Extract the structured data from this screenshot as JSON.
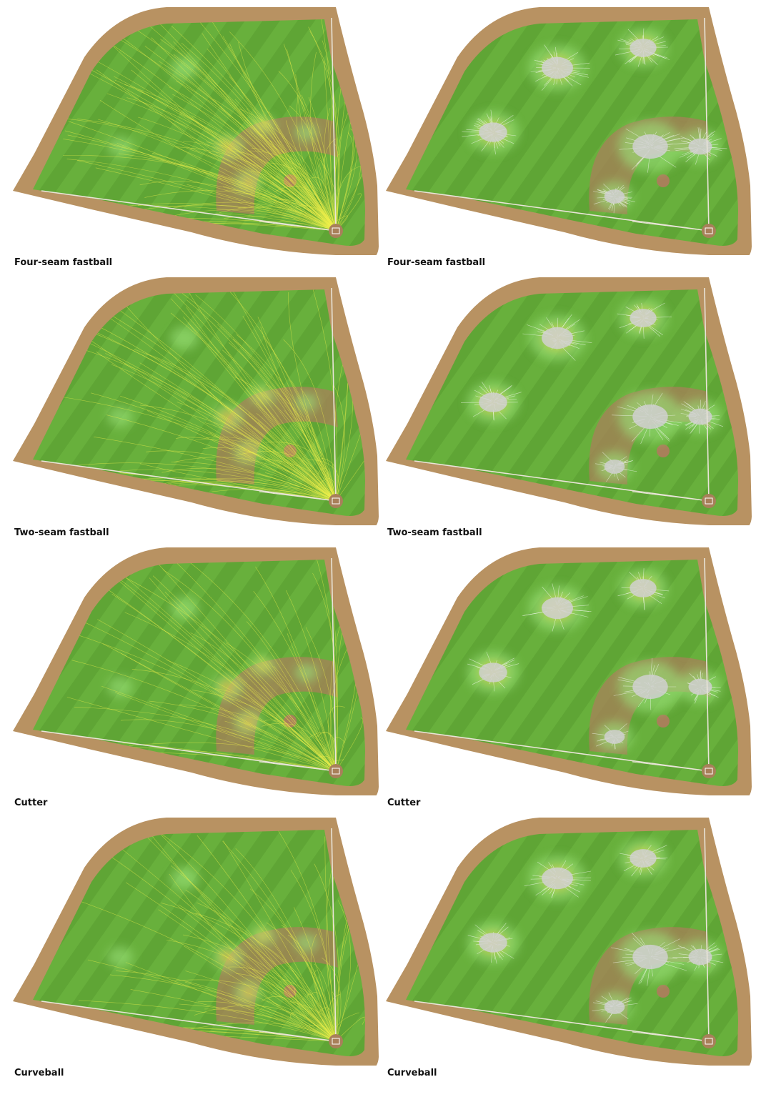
{
  "colors": {
    "grass": "#5fa535",
    "grass_stripe": "#68b03c",
    "dirt": "#b89262",
    "infield_dirt": "#a8805a",
    "line": "#e9e4d8",
    "trajectory_left": "#f0f04a",
    "trajectory_right": "#ffffff",
    "heat_low": "#9be37a",
    "heat_mid": "#e8d84a",
    "heat_high": "#f06a3a"
  },
  "rows": [
    {
      "left": {
        "label": "Four-seam fastball",
        "view": "trajectories",
        "line_density": 1.0
      },
      "right": {
        "label": "Four-seam fastball",
        "view": "landing-clusters",
        "line_density": 1.0
      }
    },
    {
      "left": {
        "label": "Two-seam fastball",
        "view": "trajectories",
        "line_density": 0.7
      },
      "right": {
        "label": "Two-seam fastball",
        "view": "landing-clusters",
        "line_density": 0.75
      }
    },
    {
      "left": {
        "label": "Cutter",
        "view": "trajectories",
        "line_density": 0.45
      },
      "right": {
        "label": "Cutter",
        "view": "landing-clusters",
        "line_density": 0.55
      }
    },
    {
      "left": {
        "label": "Curveball",
        "view": "trajectories",
        "line_density": 0.6
      },
      "right": {
        "label": "Curveball",
        "view": "landing-clusters",
        "line_density": 0.7
      }
    }
  ]
}
